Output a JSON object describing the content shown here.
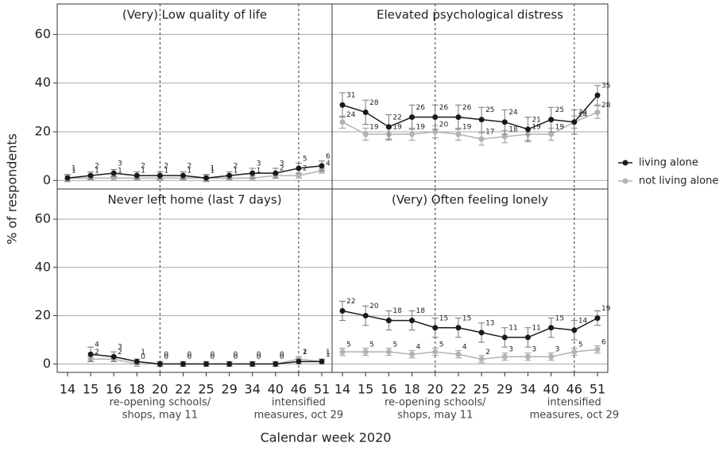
{
  "figure": {
    "x_label": "Calendar week 2020",
    "y_label": "% of respondents"
  },
  "chart_data": [
    {
      "type": "line",
      "title": "(Very) Low quality of life",
      "categories": [
        "14",
        "15",
        "16",
        "18",
        "20",
        "22",
        "25",
        "29",
        "34",
        "40",
        "46",
        "51"
      ],
      "series": [
        {
          "name": "living alone",
          "color": "#1a1a1a",
          "values": [
            1,
            2,
            3,
            2,
            2,
            2,
            1,
            2,
            3,
            3,
            5,
            6
          ],
          "errors": [
            1.5,
            1.5,
            1.5,
            1.5,
            1.5,
            1.5,
            1.5,
            1.5,
            2,
            2,
            2,
            2
          ]
        },
        {
          "name": "not living alone",
          "color": "#b3b3b3",
          "values": [
            1,
            1,
            1,
            1,
            1,
            1,
            1,
            1,
            1,
            2,
            2,
            4
          ],
          "errors": [
            1,
            1,
            1,
            1,
            1,
            1,
            1,
            1,
            1,
            1,
            1,
            1
          ]
        }
      ],
      "ylim": [
        -3.5,
        72.5
      ],
      "yticks": [
        0,
        20,
        40,
        60
      ],
      "vlines": [
        "20",
        "46"
      ],
      "grid": true
    },
    {
      "type": "line",
      "title": "Elevated psychological distress",
      "categories": [
        "14",
        "15",
        "16",
        "18",
        "20",
        "22",
        "25",
        "29",
        "34",
        "40",
        "46",
        "51"
      ],
      "series": [
        {
          "name": "living alone",
          "color": "#1a1a1a",
          "values": [
            31,
            28,
            22,
            26,
            26,
            26,
            25,
            24,
            21,
            25,
            24,
            35
          ],
          "errors": [
            5,
            5,
            5,
            5,
            5,
            5,
            5,
            5,
            5,
            5,
            5,
            4
          ]
        },
        {
          "name": "not living alone",
          "color": "#b3b3b3",
          "values": [
            24,
            19,
            19,
            19,
            20,
            19,
            17,
            18,
            19,
            19,
            24,
            28
          ],
          "errors": [
            2.5,
            2.5,
            2.5,
            2.5,
            2.5,
            2.5,
            2.5,
            2.5,
            2.5,
            2.5,
            2.5,
            2.5
          ]
        }
      ],
      "ylim": [
        -3.5,
        72.5
      ],
      "yticks": [
        0,
        20,
        40,
        60
      ],
      "vlines": [
        "20",
        "46"
      ],
      "grid": true
    },
    {
      "type": "line",
      "title": "Never left home (last 7 days)",
      "categories": [
        "14",
        "15",
        "16",
        "18",
        "20",
        "22",
        "25",
        "29",
        "34",
        "40",
        "46",
        "51"
      ],
      "series": [
        {
          "name": "living alone",
          "color": "#1a1a1a",
          "values": [
            null,
            4,
            3,
            1,
            0,
            0,
            0,
            0,
            0,
            0,
            1,
            1
          ],
          "errors": [
            null,
            3,
            2,
            1,
            1,
            1,
            1,
            1,
            1,
            1,
            1,
            1
          ]
        },
        {
          "name": "not living alone",
          "color": "#b3b3b3",
          "values": [
            null,
            2,
            2,
            0,
            0,
            0,
            0,
            0,
            0,
            0,
            2,
            1
          ],
          "errors": [
            null,
            1,
            1,
            1,
            1,
            1,
            1,
            1,
            1,
            1,
            1,
            1
          ]
        }
      ],
      "ylim": [
        -3.5,
        72.5
      ],
      "yticks": [
        0,
        20,
        40,
        60
      ],
      "vlines": [
        "20",
        "46"
      ],
      "grid": true,
      "annotations": [
        {
          "x": "20",
          "lines": [
            "re-opening schools/",
            "shops, may 11"
          ]
        },
        {
          "x": "46",
          "lines": [
            "intensified",
            "measures, oct 29"
          ]
        }
      ]
    },
    {
      "type": "line",
      "title": "(Very) Often feeling lonely",
      "categories": [
        "14",
        "15",
        "16",
        "18",
        "20",
        "22",
        "25",
        "29",
        "34",
        "40",
        "46",
        "51"
      ],
      "series": [
        {
          "name": "living alone",
          "color": "#1a1a1a",
          "values": [
            22,
            20,
            18,
            18,
            15,
            15,
            13,
            11,
            11,
            15,
            14,
            19
          ],
          "errors": [
            4,
            4,
            4,
            4,
            4,
            4,
            4,
            4,
            4,
            4,
            4,
            3
          ]
        },
        {
          "name": "not living alone",
          "color": "#b3b3b3",
          "values": [
            5,
            5,
            5,
            4,
            5,
            4,
            2,
            3,
            3,
            3,
            5,
            6
          ],
          "errors": [
            1.5,
            1.5,
            1.5,
            1.5,
            1.5,
            1.5,
            1.5,
            1.5,
            1.5,
            1.5,
            1.5,
            1.5
          ]
        }
      ],
      "ylim": [
        -3.5,
        72.5
      ],
      "yticks": [
        0,
        20,
        40,
        60
      ],
      "vlines": [
        "20",
        "46"
      ],
      "grid": true,
      "annotations": [
        {
          "x": "20",
          "lines": [
            "re-opening schools/",
            "shops, may 11"
          ]
        },
        {
          "x": "46",
          "lines": [
            "intensified",
            "measures, oct 29"
          ]
        }
      ]
    }
  ]
}
